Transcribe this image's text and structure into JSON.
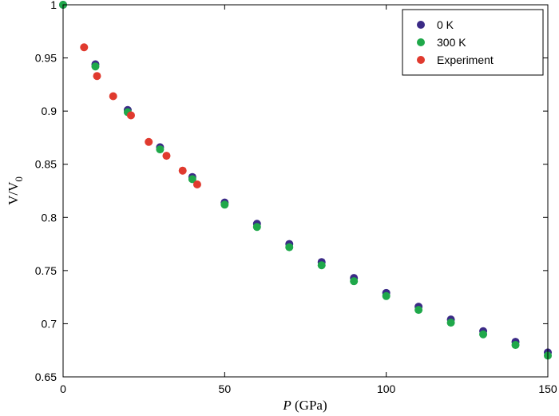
{
  "chart_data": {
    "type": "scatter",
    "xlabel": {
      "italic": "P",
      "rest": " (GPa)"
    },
    "ylabel": {
      "main": "V/V",
      "sub": "0"
    },
    "xlim": [
      0,
      150
    ],
    "ylim": [
      0.65,
      1.0
    ],
    "xticks": [
      0,
      50,
      100,
      150
    ],
    "yticks": [
      0.65,
      0.7,
      0.75,
      0.8,
      0.85,
      0.9,
      0.95,
      1.0
    ],
    "xtick_labels": [
      "0",
      "50",
      "100",
      "150"
    ],
    "ytick_labels": [
      "0.65",
      "0.7",
      "0.75",
      "0.8",
      "0.85",
      "0.9",
      "0.95",
      "1"
    ],
    "legend_position": "top-right",
    "series": [
      {
        "name": "0 K",
        "color": "#3b2a86",
        "points": [
          [
            0,
            1.0
          ],
          [
            10,
            0.944
          ],
          [
            20,
            0.901
          ],
          [
            30,
            0.866
          ],
          [
            40,
            0.838
          ],
          [
            50,
            0.814
          ],
          [
            60,
            0.794
          ],
          [
            70,
            0.775
          ],
          [
            80,
            0.758
          ],
          [
            90,
            0.743
          ],
          [
            100,
            0.729
          ],
          [
            110,
            0.716
          ],
          [
            120,
            0.704
          ],
          [
            130,
            0.693
          ],
          [
            140,
            0.683
          ],
          [
            150,
            0.673
          ]
        ]
      },
      {
        "name": "300 K",
        "color": "#1fa84a",
        "points": [
          [
            0,
            1.0
          ],
          [
            10,
            0.942
          ],
          [
            20,
            0.899
          ],
          [
            30,
            0.864
          ],
          [
            40,
            0.836
          ],
          [
            50,
            0.812
          ],
          [
            60,
            0.791
          ],
          [
            70,
            0.772
          ],
          [
            80,
            0.755
          ],
          [
            90,
            0.74
          ],
          [
            100,
            0.726
          ],
          [
            110,
            0.713
          ],
          [
            120,
            0.701
          ],
          [
            130,
            0.69
          ],
          [
            140,
            0.68
          ],
          [
            150,
            0.67
          ]
        ]
      },
      {
        "name": "Experiment",
        "color": "#e03a2e",
        "points": [
          [
            6.5,
            0.96
          ],
          [
            10.5,
            0.933
          ],
          [
            15.5,
            0.914
          ],
          [
            21,
            0.896
          ],
          [
            26.5,
            0.871
          ],
          [
            32,
            0.858
          ],
          [
            37,
            0.844
          ],
          [
            41.5,
            0.831
          ]
        ]
      }
    ]
  }
}
